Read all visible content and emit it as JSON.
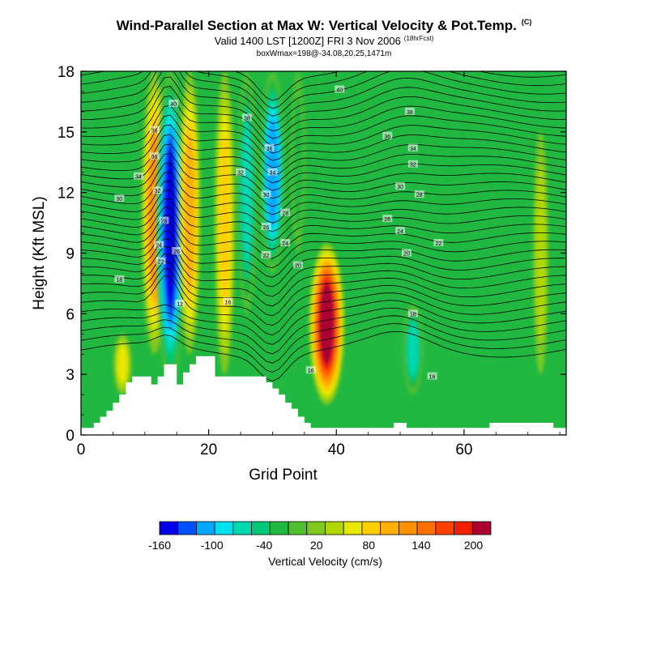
{
  "header": {
    "title": "Wind-Parallel Section at Max W: Vertical Velocity & Pot.Temp.",
    "copyright": "(C)",
    "valid": "Valid 1400 LST [1200Z] FRI 3 Nov 2006",
    "forecast": "(18hrFcst)",
    "boxinfo": "boxWmax=198@-34.08,20.25,1471m"
  },
  "chart_data": {
    "type": "heatmap",
    "xlabel": "Grid Point",
    "ylabel": "Height (Kft MSL)",
    "xlim": [
      0,
      76
    ],
    "ylim": [
      0,
      18
    ],
    "x_ticks": [
      0,
      20,
      40,
      60
    ],
    "y_ticks": [
      0,
      3,
      6,
      9,
      12,
      15,
      18
    ],
    "colorbar": {
      "label": "Vertical Velocity (cm/s)",
      "tick_labels": [
        "-160",
        "-100",
        "-40",
        "20",
        "80",
        "140",
        "200"
      ],
      "tick_values": [
        -160,
        -100,
        -40,
        20,
        80,
        140,
        200
      ],
      "bounds": [
        -160,
        -140,
        -120,
        -100,
        -80,
        -60,
        -40,
        -20,
        0,
        20,
        40,
        60,
        80,
        100,
        120,
        140,
        160,
        180,
        200,
        220
      ],
      "colors": [
        "#0000e6",
        "#0050ff",
        "#00a8ff",
        "#00e0f0",
        "#00d8b0",
        "#00c878",
        "#20b840",
        "#50c030",
        "#80c820",
        "#b0d800",
        "#e8e800",
        "#ffd000",
        "#ffb000",
        "#ff9000",
        "#ff7000",
        "#ff4000",
        "#ee2000",
        "#aa0030"
      ]
    },
    "w_field_features": [
      {
        "x": 11.5,
        "y_range": [
          4,
          18
        ],
        "w": 120,
        "note": "updraft column"
      },
      {
        "x": 14,
        "y_range": [
          2.5,
          18
        ],
        "w": -150,
        "note": "downdraft column"
      },
      {
        "x": 17,
        "y_range": [
          4,
          18
        ],
        "w": 90
      },
      {
        "x": 22.5,
        "y_range": [
          3,
          18
        ],
        "w": 80
      },
      {
        "x": 26,
        "y_range": [
          6,
          18
        ],
        "w": -80
      },
      {
        "x": 30,
        "y_range": [
          8,
          18
        ],
        "w": -120
      },
      {
        "x": 34,
        "y_range": [
          9,
          18
        ],
        "w": -40
      },
      {
        "x": 38.5,
        "y_range": [
          1.5,
          9.5
        ],
        "w": 198,
        "note": "max updraft"
      },
      {
        "x": 52,
        "y_range": [
          2,
          6.5
        ],
        "w": -80,
        "note": "downdraft"
      },
      {
        "x": 6.5,
        "y_range": [
          2,
          5
        ],
        "w": 60
      },
      {
        "x": 72,
        "y_range": [
          3,
          15
        ],
        "w": 40
      }
    ],
    "terrain": [
      [
        0,
        0.35
      ],
      [
        2,
        0.35
      ],
      [
        2,
        0.6
      ],
      [
        3,
        0.6
      ],
      [
        3,
        0.9
      ],
      [
        4,
        0.9
      ],
      [
        4,
        1.2
      ],
      [
        5,
        1.2
      ],
      [
        5,
        1.6
      ],
      [
        6,
        1.6
      ],
      [
        6,
        2.0
      ],
      [
        7,
        2.0
      ],
      [
        7,
        2.6
      ],
      [
        8,
        2.6
      ],
      [
        8,
        2.9
      ],
      [
        11,
        2.9
      ],
      [
        11,
        2.5
      ],
      [
        12,
        2.5
      ],
      [
        12,
        2.9
      ],
      [
        13,
        2.9
      ],
      [
        13,
        3.5
      ],
      [
        15,
        3.5
      ],
      [
        15,
        2.5
      ],
      [
        16,
        2.5
      ],
      [
        16,
        3.1
      ],
      [
        17,
        3.1
      ],
      [
        17,
        3.5
      ],
      [
        18,
        3.5
      ],
      [
        18,
        3.9
      ],
      [
        21,
        3.9
      ],
      [
        21,
        2.9
      ],
      [
        29,
        2.9
      ],
      [
        29,
        2.6
      ],
      [
        30,
        2.6
      ],
      [
        30,
        2.3
      ],
      [
        31,
        2.3
      ],
      [
        31,
        2.0
      ],
      [
        32,
        2.0
      ],
      [
        32,
        1.6
      ],
      [
        33,
        1.6
      ],
      [
        33,
        1.3
      ],
      [
        34,
        1.3
      ],
      [
        34,
        0.9
      ],
      [
        35,
        0.9
      ],
      [
        35,
        0.6
      ],
      [
        36,
        0.6
      ],
      [
        36,
        0.35
      ],
      [
        49,
        0.35
      ],
      [
        49,
        0.6
      ],
      [
        51,
        0.6
      ],
      [
        51,
        0.35
      ],
      [
        64,
        0.35
      ],
      [
        64,
        0.6
      ],
      [
        74,
        0.6
      ],
      [
        74,
        0.35
      ],
      [
        76,
        0.35
      ]
    ],
    "theta_contour_labels": [
      {
        "text": "40",
        "x": 40.5,
        "y": 17.1
      },
      {
        "text": "38",
        "x": 51.5,
        "y": 16.0
      },
      {
        "text": "36",
        "x": 48,
        "y": 14.8
      },
      {
        "text": "34",
        "x": 52,
        "y": 14.2
      },
      {
        "text": "32",
        "x": 52,
        "y": 13.4
      },
      {
        "text": "30",
        "x": 50,
        "y": 12.3
      },
      {
        "text": "28",
        "x": 53,
        "y": 11.9
      },
      {
        "text": "26",
        "x": 48,
        "y": 10.7
      },
      {
        "text": "24",
        "x": 50,
        "y": 10.1
      },
      {
        "text": "22",
        "x": 56,
        "y": 9.5
      },
      {
        "text": "20",
        "x": 51,
        "y": 9.0
      },
      {
        "text": "18",
        "x": 52,
        "y": 6.0
      },
      {
        "text": "16",
        "x": 55,
        "y": 2.9
      },
      {
        "text": "16",
        "x": 36,
        "y": 3.2
      },
      {
        "text": "20",
        "x": 34,
        "y": 8.4
      },
      {
        "text": "22",
        "x": 29,
        "y": 8.9
      },
      {
        "text": "24",
        "x": 32,
        "y": 9.5
      },
      {
        "text": "26",
        "x": 29,
        "y": 10.3
      },
      {
        "text": "28",
        "x": 32,
        "y": 11.0
      },
      {
        "text": "30",
        "x": 29,
        "y": 11.9
      },
      {
        "text": "32",
        "x": 25,
        "y": 13.0
      },
      {
        "text": "34",
        "x": 30,
        "y": 13.0
      },
      {
        "text": "36",
        "x": 29.5,
        "y": 14.2
      },
      {
        "text": "38",
        "x": 26,
        "y": 15.7
      },
      {
        "text": "40",
        "x": 14.5,
        "y": 16.4
      },
      {
        "text": "38",
        "x": 11.5,
        "y": 15.1
      },
      {
        "text": "36",
        "x": 11.5,
        "y": 13.8
      },
      {
        "text": "34",
        "x": 9,
        "y": 12.8
      },
      {
        "text": "32",
        "x": 12,
        "y": 12.1
      },
      {
        "text": "30",
        "x": 6,
        "y": 11.7
      },
      {
        "text": "28",
        "x": 13,
        "y": 10.6
      },
      {
        "text": "24",
        "x": 12.2,
        "y": 9.4
      },
      {
        "text": "26",
        "x": 15,
        "y": 9.1
      },
      {
        "text": "22",
        "x": 12.5,
        "y": 8.6
      },
      {
        "text": "18",
        "x": 6,
        "y": 7.7
      },
      {
        "text": "16",
        "x": 23,
        "y": 6.6
      },
      {
        "text": "12",
        "x": 15.5,
        "y": 6.5
      }
    ]
  }
}
